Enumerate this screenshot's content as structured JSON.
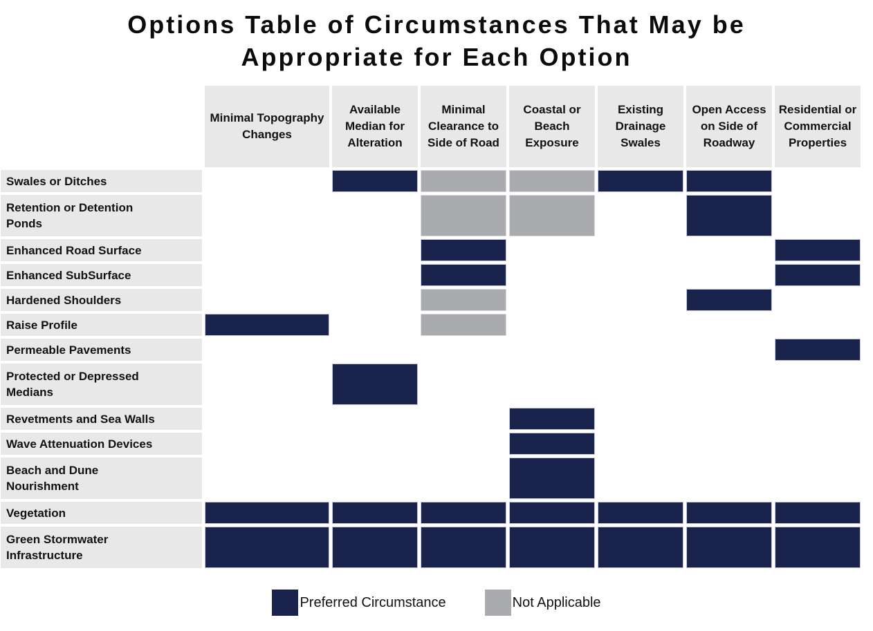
{
  "title": {
    "line1": "Options Table of Circumstances That May be",
    "line2": "Appropriate for Each Option"
  },
  "chart_data": {
    "type": "table",
    "title": "Options Table of Circumstances That May be Appropriate for Each Option",
    "columns": [
      "Minimal Topography Changes",
      "Available Median for Alteration",
      "Minimal Clearance to Side of Road",
      "Coastal or Beach Exposure",
      "Existing Drainage Swales",
      "Open Access on Side of Roadway",
      "Residential or Commercial Properties"
    ],
    "rows": [
      {
        "label": "Swales or Ditches",
        "cells": [
          "",
          "preferred",
          "na",
          "na",
          "preferred",
          "preferred",
          ""
        ]
      },
      {
        "label": "Retention or Detention\nPonds",
        "cells": [
          "",
          "",
          "na",
          "na",
          "",
          "preferred",
          ""
        ]
      },
      {
        "label": "Enhanced Road Surface",
        "cells": [
          "",
          "",
          "preferred",
          "",
          "",
          "",
          "preferred"
        ]
      },
      {
        "label": "Enhanced SubSurface",
        "cells": [
          "",
          "",
          "preferred",
          "",
          "",
          "",
          "preferred"
        ]
      },
      {
        "label": "Hardened Shoulders",
        "cells": [
          "",
          "",
          "na",
          "",
          "",
          "preferred",
          ""
        ]
      },
      {
        "label": "Raise Profile",
        "cells": [
          "preferred",
          "",
          "na",
          "",
          "",
          "",
          ""
        ]
      },
      {
        "label": "Permeable Pavements",
        "cells": [
          "",
          "",
          "",
          "",
          "",
          "",
          "preferred"
        ]
      },
      {
        "label": "Protected or Depressed\nMedians",
        "cells": [
          "",
          "preferred",
          "",
          "",
          "",
          "",
          ""
        ]
      },
      {
        "label": "Revetments and Sea Walls",
        "cells": [
          "",
          "",
          "",
          "preferred",
          "",
          "",
          ""
        ]
      },
      {
        "label": "Wave Attenuation Devices",
        "cells": [
          "",
          "",
          "",
          "preferred",
          "",
          "",
          ""
        ]
      },
      {
        "label": "Beach and Dune\nNourishment",
        "cells": [
          "",
          "",
          "",
          "preferred",
          "",
          "",
          ""
        ]
      },
      {
        "label": "Vegetation",
        "cells": [
          "preferred",
          "preferred",
          "preferred",
          "preferred",
          "preferred",
          "preferred",
          "preferred"
        ]
      },
      {
        "label": "Green Stormwater\nInfrastructure",
        "cells": [
          "preferred",
          "preferred",
          "preferred",
          "preferred",
          "preferred",
          "preferred",
          "preferred"
        ]
      }
    ],
    "legend": [
      {
        "label": "Preferred Circumstance",
        "value": "preferred"
      },
      {
        "label": "Not Applicable",
        "value": "na"
      }
    ],
    "colors": {
      "preferred": "#19234c",
      "not_applicable": "#a9abae",
      "header_bg": "#e8e8e8"
    }
  }
}
